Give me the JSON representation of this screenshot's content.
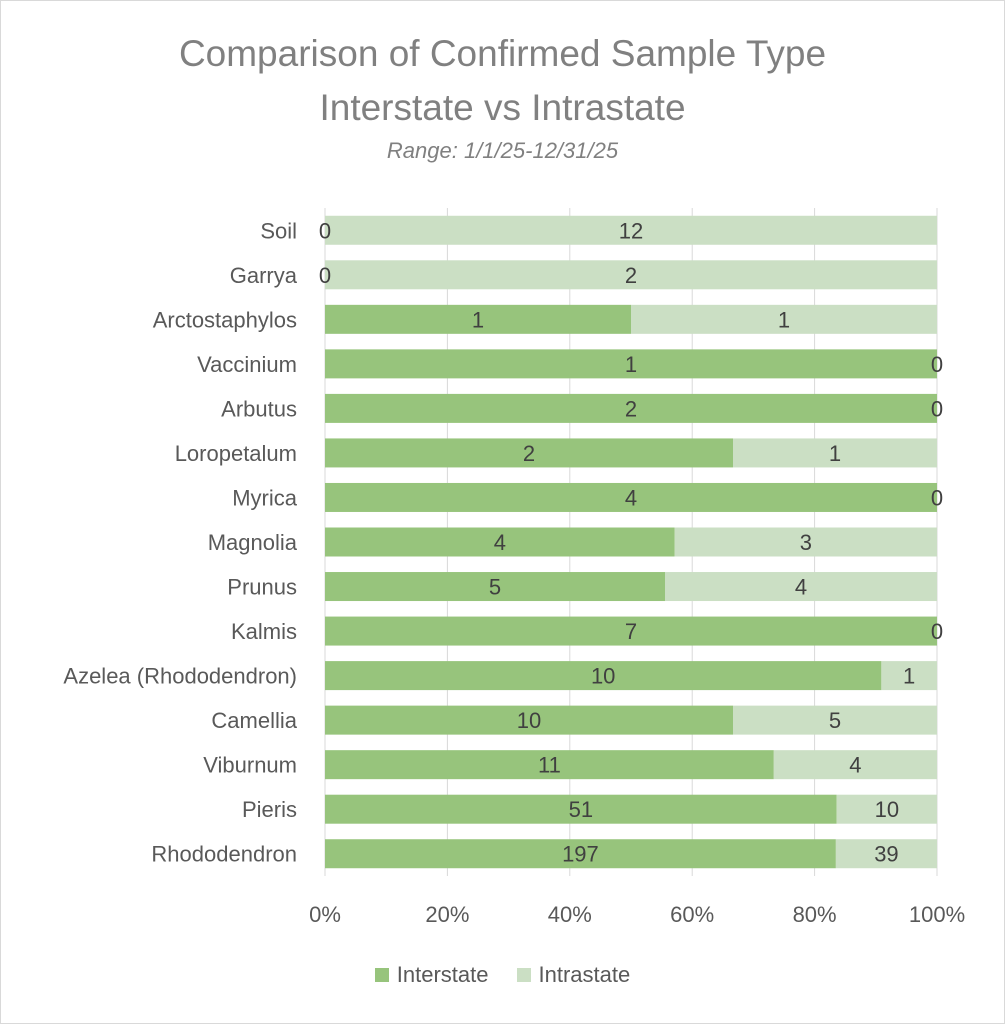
{
  "chart_data": {
    "type": "bar",
    "orientation": "horizontal",
    "stacked": "percent",
    "title_line1": "Comparison of Confirmed Sample Type",
    "title_line2": "Interstate vs Intrastate",
    "subtitle": "Range: 1/1/25-12/31/25",
    "categories": [
      "Soil",
      "Garrya",
      "Arctostaphylos",
      "Vaccinium",
      "Arbutus",
      "Loropetalum",
      "Myrica",
      "Magnolia",
      "Prunus",
      "Kalmis",
      "Azelea (Rhododendron)",
      "Camellia",
      "Viburnum",
      "Pieris",
      "Rhododendron"
    ],
    "series": [
      {
        "name": "Interstate",
        "color": "#97c47c",
        "values": [
          0,
          0,
          1,
          1,
          2,
          2,
          4,
          4,
          5,
          7,
          10,
          10,
          11,
          51,
          197
        ]
      },
      {
        "name": "Intrastate",
        "color": "#cbdfc4",
        "values": [
          12,
          2,
          1,
          0,
          0,
          1,
          0,
          3,
          4,
          0,
          1,
          5,
          4,
          10,
          39
        ]
      }
    ],
    "xticks": [
      "0%",
      "20%",
      "40%",
      "60%",
      "80%",
      "100%"
    ],
    "xlim": [
      0,
      100
    ],
    "grid": true,
    "legend": "bottom"
  }
}
